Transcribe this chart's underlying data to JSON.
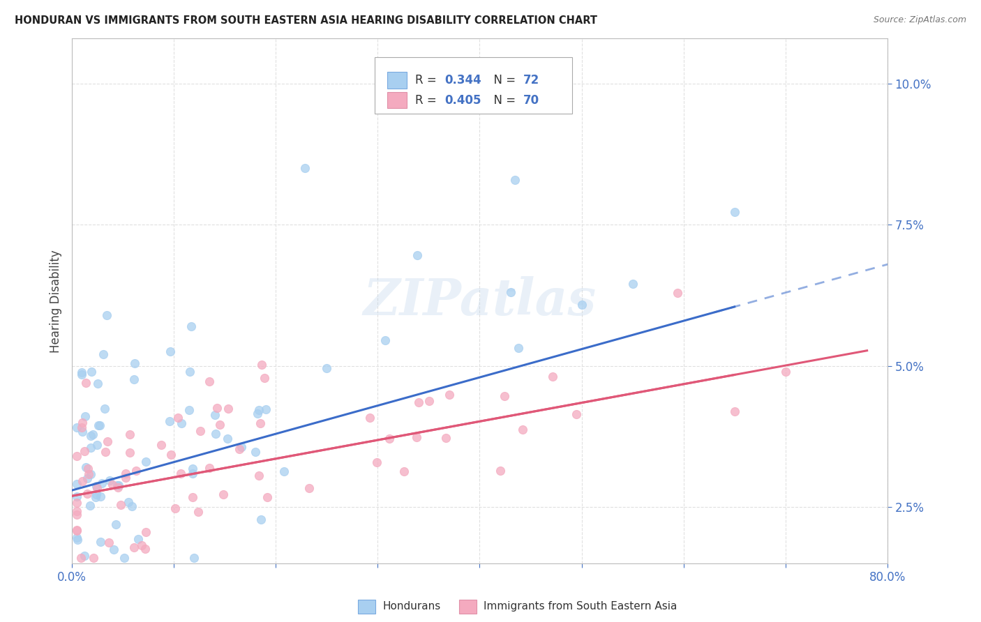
{
  "title": "HONDURAN VS IMMIGRANTS FROM SOUTH EASTERN ASIA HEARING DISABILITY CORRELATION CHART",
  "source": "Source: ZipAtlas.com",
  "ylabel": "Hearing Disability",
  "ytick_values": [
    0.025,
    0.05,
    0.075,
    0.1
  ],
  "ytick_labels": [
    "2.5%",
    "5.0%",
    "7.5%",
    "10.0%"
  ],
  "xmin": 0.0,
  "xmax": 0.8,
  "ymin": 0.015,
  "ymax": 0.108,
  "color_blue": "#A8CFF0",
  "color_pink": "#F4AABF",
  "color_blue_line": "#3B6CC9",
  "color_pink_line": "#E05878",
  "color_blue_dark": "#3B6CC9",
  "color_pink_dark": "#E05878",
  "legend_label1": "Hondurans",
  "legend_label2": "Immigrants from South Eastern Asia",
  "watermark": "ZIPatlas",
  "background_color": "#FFFFFF",
  "grid_color": "#DDDDDD",
  "ytick_color": "#4472C4"
}
